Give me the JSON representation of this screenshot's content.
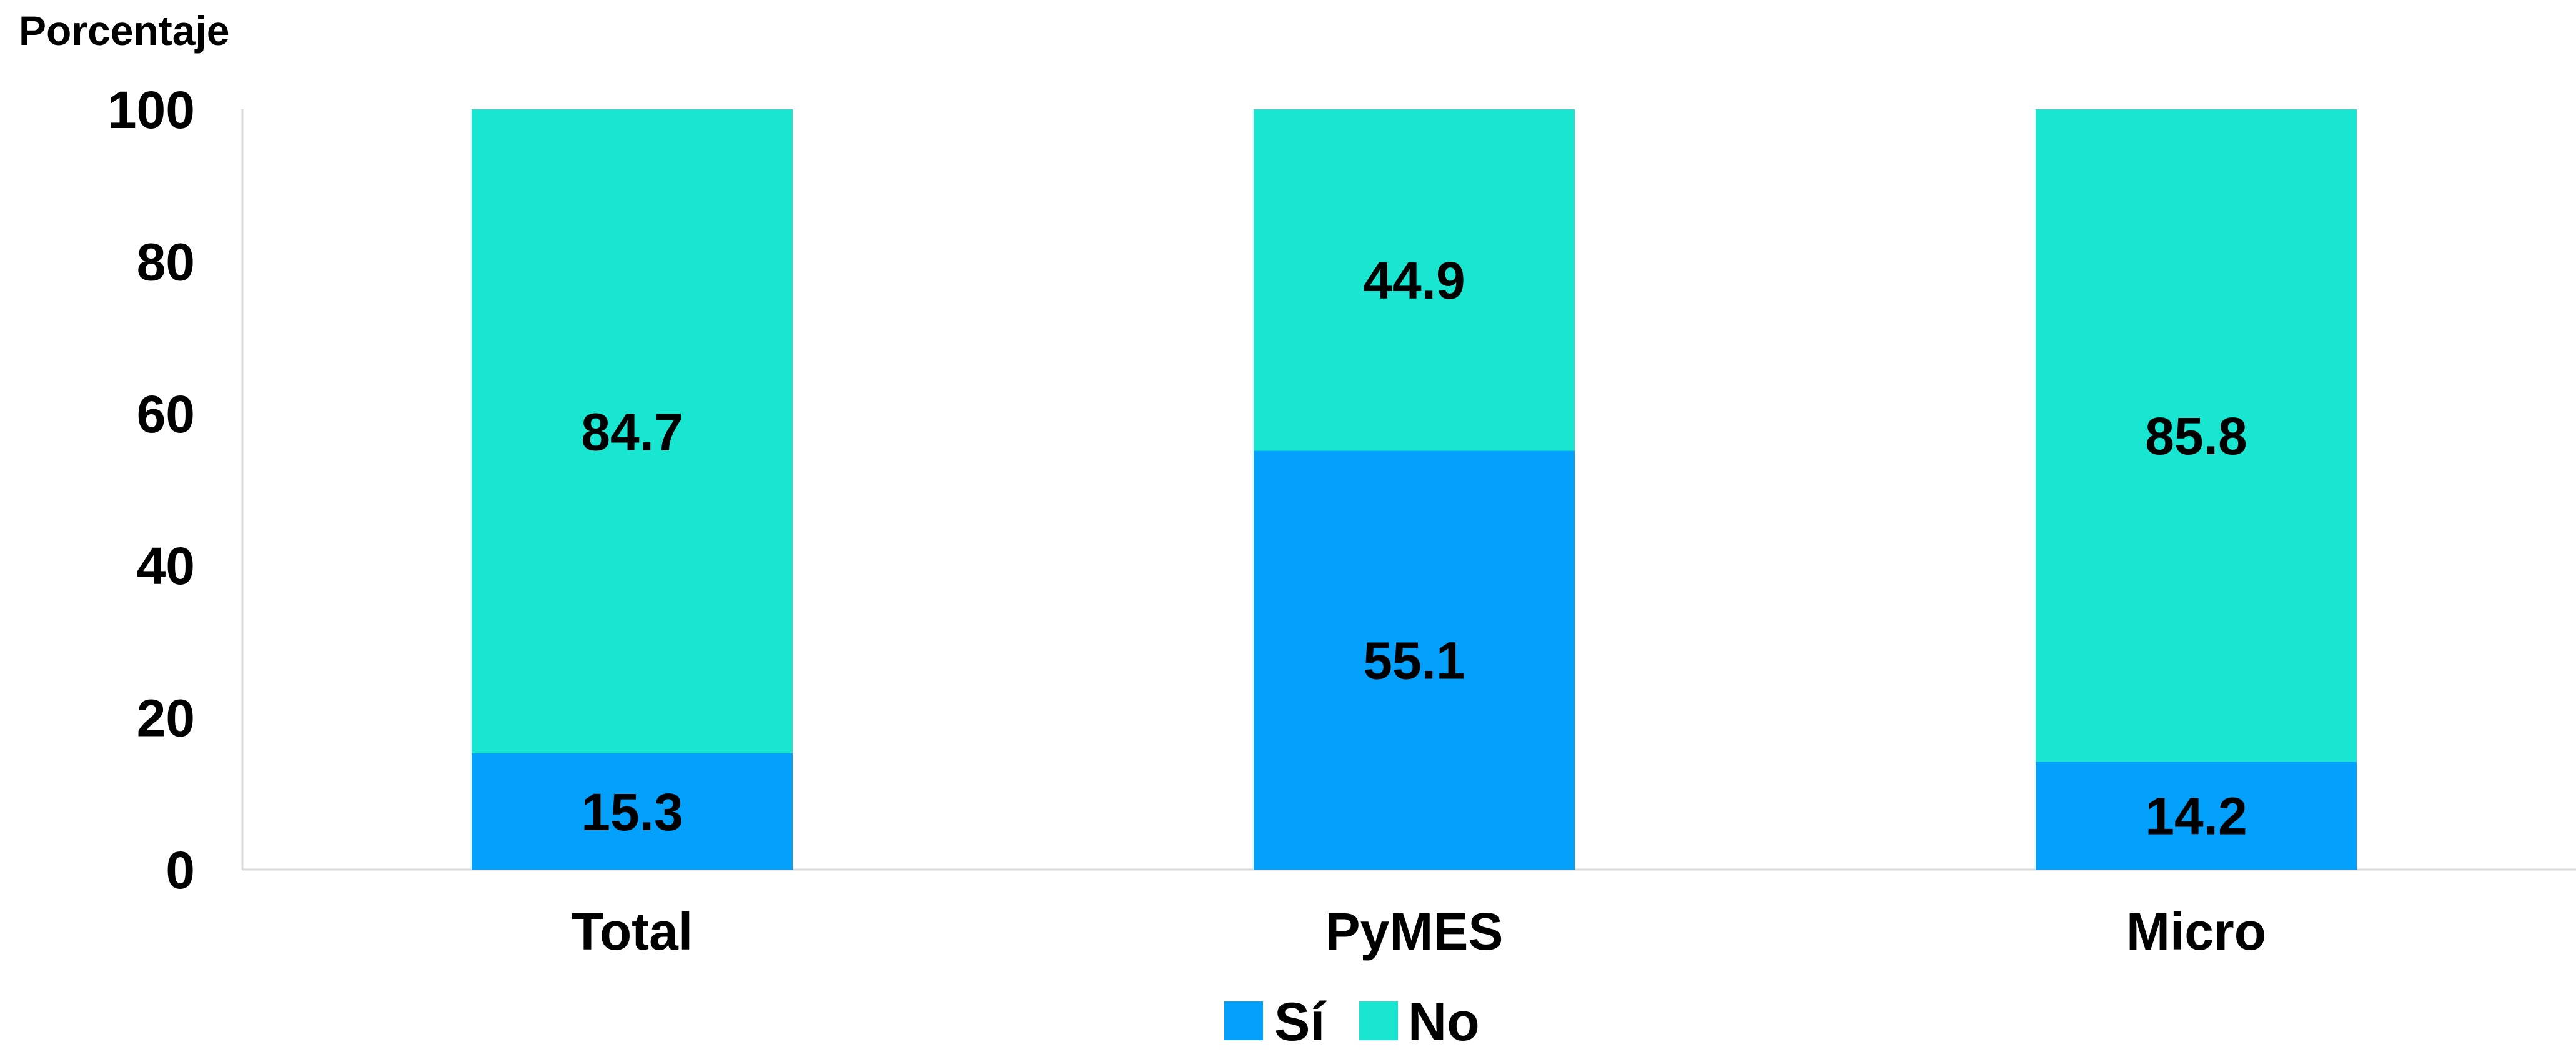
{
  "chart_data": {
    "type": "bar",
    "stacked": true,
    "ylabel": "Porcentaje",
    "xlabel": "",
    "ylim": [
      0,
      100
    ],
    "yticks": [
      "0",
      "20",
      "40",
      "60",
      "80",
      "100"
    ],
    "categories": [
      "Total",
      "PyMES",
      "Micro"
    ],
    "series": [
      {
        "name": "Sí",
        "values": [
          15.3,
          55.1,
          14.2
        ],
        "labels": [
          "15.3",
          "55.1",
          "14.2"
        ],
        "color": "#03A1FB"
      },
      {
        "name": "No",
        "values": [
          84.7,
          44.9,
          85.8
        ],
        "labels": [
          "84.7",
          "44.9",
          "85.8"
        ],
        "color": "#19E6D1"
      }
    ],
    "grid": false,
    "legend": "bottom-center"
  }
}
